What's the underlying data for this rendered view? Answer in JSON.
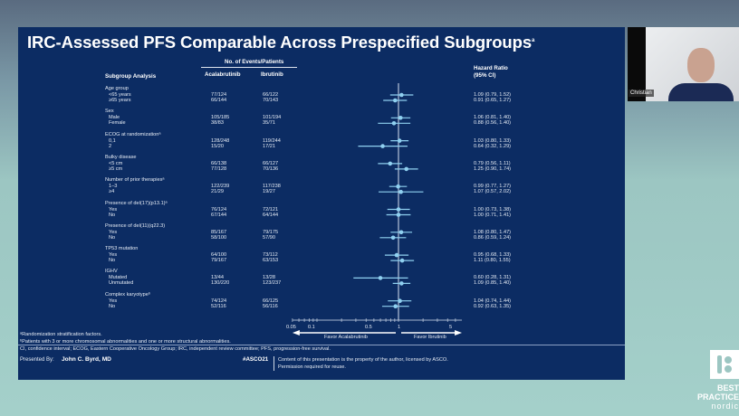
{
  "slide": {
    "title": "IRC-Assessed PFS Comparable Across Prespecified Subgroups",
    "title_sup": "a",
    "header_events": "No. of Events/Patients",
    "header_subgroup": "Subgroup Analysis",
    "header_arm1": "Acalabrutinib",
    "header_arm2": "Ibrutinib",
    "header_hr": "Hazard Ratio",
    "header_ci": "(95% CI)",
    "footnote_a": "ᵃRandomization stratification factors.",
    "footnote_b": "ᵇPatients with 3 or more chromosomal abnormalities and one or more structural abnormalities.",
    "abbrev": "CI, confidence interval; ECOG, Eastern Cooperative Oncology Group; IRC, independent review committee; PFS, progression-free survival.",
    "presented_by_label": "Presented By:",
    "presenter": "John C. Byrd, MD",
    "hashtag": "#ASCO21",
    "copyright1": "Content of this presentation is the property of the author, licensed by ASCO.",
    "copyright2": "Permission required for reuse."
  },
  "chart_data": {
    "type": "forest",
    "xscale": "log",
    "xlim": [
      0.05,
      6
    ],
    "xticks": [
      "0.05",
      "0.1",
      "0.5",
      "1",
      "5"
    ],
    "reference_line": 1,
    "favor_left": "Favor Acalabrutinib",
    "favor_right": "Favor Ibrutinib",
    "marker_color": "#8fd0f0",
    "groups": [
      {
        "label": "Age group",
        "rows": [
          {
            "label": "<65 years",
            "arm1": "77/124",
            "arm2": "66/122",
            "hr": 1.09,
            "lo": 0.79,
            "hi": 1.52,
            "text": "1.09 (0.79, 1.52)"
          },
          {
            "label": "≥65 years",
            "arm1": "66/144",
            "arm2": "70/143",
            "hr": 0.91,
            "lo": 0.65,
            "hi": 1.27,
            "text": "0.91 (0.65, 1.27)"
          }
        ]
      },
      {
        "label": "Sex",
        "rows": [
          {
            "label": "Male",
            "arm1": "105/185",
            "arm2": "101/194",
            "hr": 1.06,
            "lo": 0.81,
            "hi": 1.4,
            "text": "1.06 (0.81, 1.40)"
          },
          {
            "label": "Female",
            "arm1": "38/83",
            "arm2": "35/71",
            "hr": 0.88,
            "lo": 0.56,
            "hi": 1.4,
            "text": "0.88 (0.56, 1.40)"
          }
        ]
      },
      {
        "label": "ECOG at randomizationᵃ",
        "rows": [
          {
            "label": "0,1",
            "arm1": "128/248",
            "arm2": "119/244",
            "hr": 1.03,
            "lo": 0.8,
            "hi": 1.33,
            "text": "1.03 (0.80, 1.33)"
          },
          {
            "label": "2",
            "arm1": "15/20",
            "arm2": "17/21",
            "hr": 0.64,
            "lo": 0.32,
            "hi": 1.29,
            "text": "0.64 (0.32, 1.29)"
          }
        ]
      },
      {
        "label": "Bulky disease",
        "rows": [
          {
            "label": "<5 cm",
            "arm1": "66/138",
            "arm2": "66/127",
            "hr": 0.79,
            "lo": 0.56,
            "hi": 1.11,
            "text": "0.79 (0.56, 1.11)"
          },
          {
            "label": "≥5 cm",
            "arm1": "77/128",
            "arm2": "70/136",
            "hr": 1.25,
            "lo": 0.9,
            "hi": 1.74,
            "text": "1.25 (0.90, 1.74)"
          }
        ]
      },
      {
        "label": "Number of prior therapiesᵃ",
        "rows": [
          {
            "label": "1–3",
            "arm1": "122/239",
            "arm2": "117/238",
            "hr": 0.99,
            "lo": 0.77,
            "hi": 1.27,
            "text": "0.99 (0.77, 1.27)"
          },
          {
            "label": "≥4",
            "arm1": "21/29",
            "arm2": "19/27",
            "hr": 1.07,
            "lo": 0.57,
            "hi": 2.02,
            "text": "1.07 (0.57, 2.02)"
          }
        ]
      },
      {
        "label": "Presence of del(17)(p13.1)ᵃ",
        "rows": [
          {
            "label": "Yes",
            "arm1": "76/124",
            "arm2": "72/121",
            "hr": 1.0,
            "lo": 0.73,
            "hi": 1.38,
            "text": "1.00 (0.73, 1.38)"
          },
          {
            "label": "No",
            "arm1": "67/144",
            "arm2": "64/144",
            "hr": 1.0,
            "lo": 0.71,
            "hi": 1.41,
            "text": "1.00 (0.71, 1.41)"
          }
        ]
      },
      {
        "label": "Presence of del(11)(q22.3)",
        "rows": [
          {
            "label": "Yes",
            "arm1": "85/167",
            "arm2": "79/175",
            "hr": 1.08,
            "lo": 0.8,
            "hi": 1.47,
            "text": "1.08 (0.80, 1.47)"
          },
          {
            "label": "No",
            "arm1": "58/100",
            "arm2": "57/90",
            "hr": 0.86,
            "lo": 0.59,
            "hi": 1.24,
            "text": "0.86 (0.59, 1.24)"
          }
        ]
      },
      {
        "label": "TP53 mutation",
        "rows": [
          {
            "label": "Yes",
            "arm1": "64/100",
            "arm2": "73/112",
            "hr": 0.95,
            "lo": 0.68,
            "hi": 1.33,
            "text": "0.95 (0.68, 1.33)"
          },
          {
            "label": "No",
            "arm1": "79/167",
            "arm2": "63/153",
            "hr": 1.11,
            "lo": 0.8,
            "hi": 1.55,
            "text": "1.11 (0.80, 1.55)"
          }
        ]
      },
      {
        "label": "IGHV",
        "rows": [
          {
            "label": "Mutated",
            "arm1": "13/44",
            "arm2": "13/28",
            "hr": 0.6,
            "lo": 0.28,
            "hi": 1.31,
            "text": "0.60 (0.28, 1.31)"
          },
          {
            "label": "Unmutated",
            "arm1": "130/220",
            "arm2": "123/237",
            "hr": 1.09,
            "lo": 0.85,
            "hi": 1.4,
            "text": "1.09 (0.85, 1.40)"
          }
        ]
      },
      {
        "label": "Complex karyotypeᵇ",
        "rows": [
          {
            "label": "Yes",
            "arm1": "74/124",
            "arm2": "66/125",
            "hr": 1.04,
            "lo": 0.74,
            "hi": 1.44,
            "text": "1.04 (0.74, 1.44)"
          },
          {
            "label": "No",
            "arm1": "52/116",
            "arm2": "56/116",
            "hr": 0.92,
            "lo": 0.63,
            "hi": 1.35,
            "text": "0.92 (0.63, 1.35)"
          }
        ]
      }
    ]
  },
  "video": {
    "participant_name": "Christian"
  },
  "branding": {
    "line1": "BEST",
    "line2": "PRACTICE",
    "line3": "nordic"
  }
}
